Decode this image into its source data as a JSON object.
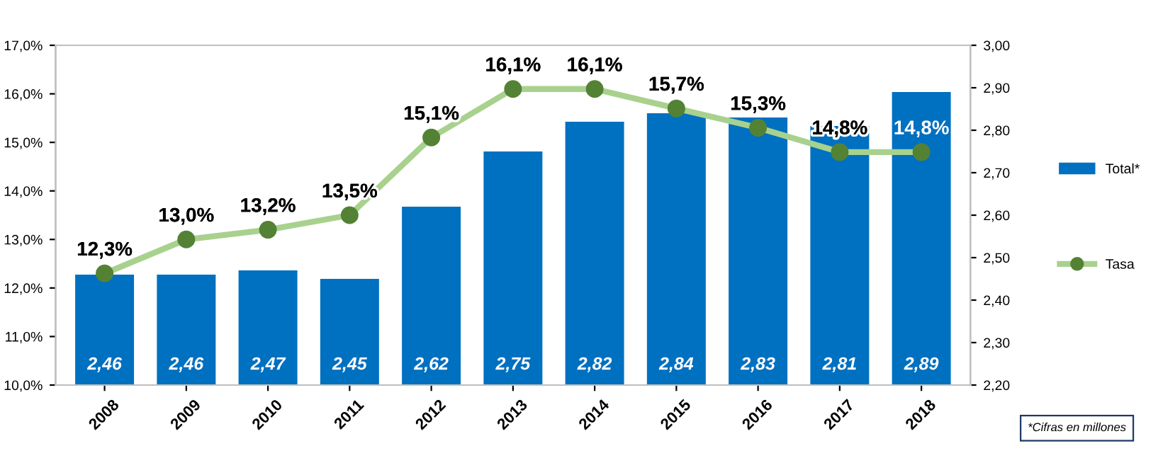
{
  "chart_data": {
    "type": "bar",
    "categories": [
      "2008",
      "2009",
      "2010",
      "2011",
      "2012",
      "2013",
      "2014",
      "2015",
      "2016",
      "2017",
      "2018"
    ],
    "series": [
      {
        "name": "Total*",
        "axis": "y2",
        "color": "#0070c0",
        "values": [
          2.46,
          2.46,
          2.47,
          2.45,
          2.62,
          2.75,
          2.82,
          2.84,
          2.83,
          2.81,
          2.89
        ],
        "value_labels": [
          "2,46",
          "2,46",
          "2,47",
          "2,45",
          "2,62",
          "2,75",
          "2,82",
          "2,84",
          "2,83",
          "2,81",
          "2,89"
        ]
      },
      {
        "name": "Tasa",
        "type": "line",
        "axis": "y",
        "color": "#a9d18e",
        "marker": "circle",
        "values": [
          12.3,
          13.0,
          13.2,
          13.5,
          15.1,
          16.1,
          16.1,
          15.7,
          15.3,
          14.8,
          14.8
        ],
        "value_labels": [
          "12,3%",
          "13,0%",
          "13,2%",
          "13,5%",
          "15,1%",
          "16,1%",
          "16,1%",
          "15,7%",
          "15,3%",
          "14,8%",
          "14,8%"
        ]
      }
    ],
    "ylim": [
      10,
      17
    ],
    "yticks": [
      {
        "value": 10,
        "label": "10,0%"
      },
      {
        "value": 11,
        "label": "11,0%"
      },
      {
        "value": 12,
        "label": "12,0%"
      },
      {
        "value": 13,
        "label": "13,0%"
      },
      {
        "value": 14,
        "label": "14,0%"
      },
      {
        "value": 15,
        "label": "15,0%"
      },
      {
        "value": 16,
        "label": "16,0%"
      },
      {
        "value": 17,
        "label": "17,0%"
      }
    ],
    "y2lim": [
      2.2,
      3.0
    ],
    "y2ticks": [
      {
        "value": 2.2,
        "label": "2,20"
      },
      {
        "value": 2.3,
        "label": "2,30"
      },
      {
        "value": 2.4,
        "label": "2,40"
      },
      {
        "value": 2.5,
        "label": "2,50"
      },
      {
        "value": 2.6,
        "label": "2,60"
      },
      {
        "value": 2.7,
        "label": "2,70"
      },
      {
        "value": 2.8,
        "label": "2,80"
      },
      {
        "value": 2.9,
        "label": "2,90"
      },
      {
        "value": 3.0,
        "label": "3,00"
      }
    ],
    "legend": "right",
    "grid": false,
    "annotations": [
      "*Cifras en millones"
    ]
  }
}
